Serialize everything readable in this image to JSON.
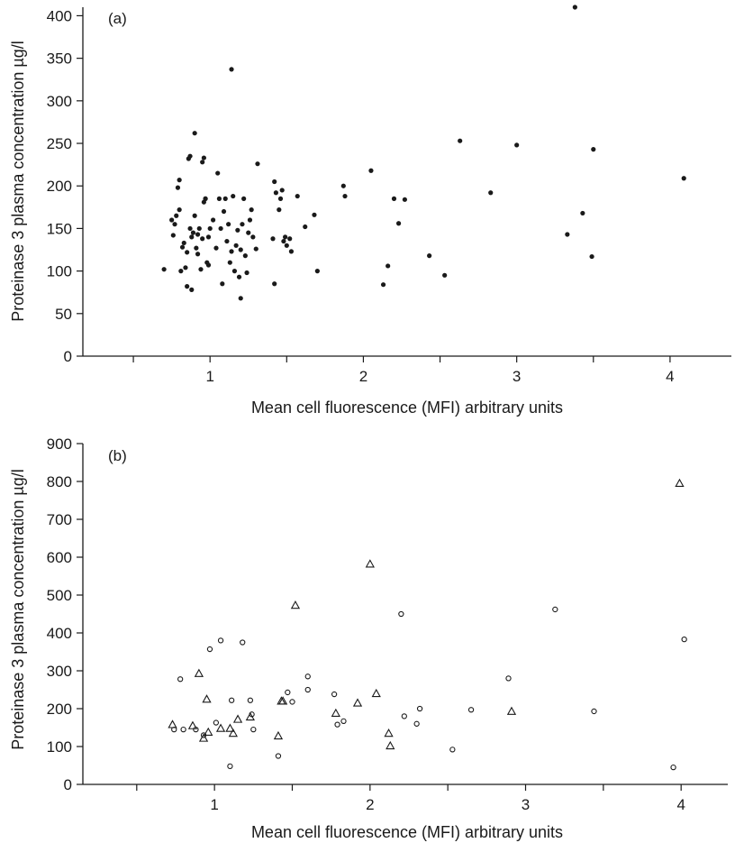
{
  "chart_data": [
    {
      "type": "scatter",
      "panel_label": "(a)",
      "xlabel": "Mean cell fluorescence (MFI) arbitrary units",
      "ylabel": "Proteinase 3 plasma concentration µg/l",
      "xlim": [
        0.2,
        4.4
      ],
      "ylim": [
        0,
        410
      ],
      "x_ticks": [
        1,
        2,
        3,
        4
      ],
      "x_minor_ticks": [
        0.5,
        1.5,
        2.5,
        3.5
      ],
      "y_ticks": [
        0,
        50,
        100,
        150,
        200,
        250,
        300,
        350,
        400
      ],
      "grid": false,
      "series": [
        {
          "marker": "filled-circle",
          "color": "#1a1a1a",
          "points": [
            [
              0.7,
              102
            ],
            [
              0.75,
              160
            ],
            [
              0.76,
              142
            ],
            [
              0.77,
              155
            ],
            [
              0.78,
              165
            ],
            [
              0.79,
              198
            ],
            [
              0.8,
              172
            ],
            [
              0.8,
              207
            ],
            [
              0.81,
              100
            ],
            [
              0.82,
              128
            ],
            [
              0.83,
              133
            ],
            [
              0.84,
              104
            ],
            [
              0.85,
              82
            ],
            [
              0.85,
              122
            ],
            [
              0.86,
              232
            ],
            [
              0.87,
              150
            ],
            [
              0.87,
              235
            ],
            [
              0.88,
              78
            ],
            [
              0.88,
              140
            ],
            [
              0.89,
              145
            ],
            [
              0.9,
              262
            ],
            [
              0.9,
              165
            ],
            [
              0.91,
              127
            ],
            [
              0.92,
              120
            ],
            [
              0.92,
              143
            ],
            [
              0.93,
              150
            ],
            [
              0.94,
              102
            ],
            [
              0.95,
              228
            ],
            [
              0.95,
              138
            ],
            [
              0.96,
              233
            ],
            [
              0.96,
              181
            ],
            [
              0.97,
              185
            ],
            [
              0.97,
              185
            ],
            [
              0.98,
              110
            ],
            [
              0.99,
              107
            ],
            [
              0.99,
              140
            ],
            [
              1.0,
              150
            ],
            [
              1.02,
              160
            ],
            [
              1.04,
              127
            ],
            [
              1.05,
              215
            ],
            [
              1.06,
              185
            ],
            [
              1.07,
              150
            ],
            [
              1.08,
              85
            ],
            [
              1.09,
              170
            ],
            [
              1.1,
              185
            ],
            [
              1.11,
              135
            ],
            [
              1.12,
              155
            ],
            [
              1.13,
              110
            ],
            [
              1.14,
              337
            ],
            [
              1.14,
              123
            ],
            [
              1.15,
              188
            ],
            [
              1.16,
              100
            ],
            [
              1.17,
              130
            ],
            [
              1.18,
              148
            ],
            [
              1.19,
              93
            ],
            [
              1.2,
              68
            ],
            [
              1.2,
              125
            ],
            [
              1.21,
              155
            ],
            [
              1.22,
              185
            ],
            [
              1.23,
              118
            ],
            [
              1.24,
              98
            ],
            [
              1.25,
              145
            ],
            [
              1.26,
              160
            ],
            [
              1.27,
              172
            ],
            [
              1.28,
              140
            ],
            [
              1.3,
              126
            ],
            [
              1.31,
              226
            ],
            [
              1.41,
              138
            ],
            [
              1.42,
              85
            ],
            [
              1.42,
              205
            ],
            [
              1.43,
              192
            ],
            [
              1.45,
              172
            ],
            [
              1.46,
              185
            ],
            [
              1.47,
              195
            ],
            [
              1.48,
              135
            ],
            [
              1.49,
              140
            ],
            [
              1.5,
              130
            ],
            [
              1.52,
              138
            ],
            [
              1.53,
              123
            ],
            [
              1.57,
              188
            ],
            [
              1.62,
              152
            ],
            [
              1.68,
              166
            ],
            [
              1.7,
              100
            ],
            [
              1.87,
              200
            ],
            [
              1.88,
              188
            ],
            [
              2.05,
              218
            ],
            [
              2.13,
              84
            ],
            [
              2.16,
              106
            ],
            [
              2.2,
              185
            ],
            [
              2.23,
              156
            ],
            [
              2.27,
              184
            ],
            [
              2.43,
              118
            ],
            [
              2.53,
              95
            ],
            [
              2.63,
              253
            ],
            [
              2.83,
              192
            ],
            [
              3.0,
              248
            ],
            [
              3.33,
              143
            ],
            [
              3.38,
              410
            ],
            [
              3.43,
              168
            ],
            [
              3.49,
              117
            ],
            [
              3.5,
              243
            ],
            [
              4.09,
              209
            ]
          ]
        }
      ]
    },
    {
      "type": "scatter",
      "panel_label": "(b)",
      "xlabel": "Mean cell fluorescence (MFI) arbitrary units",
      "ylabel": "Proteinase 3 plasma concentration µg/l",
      "xlim": [
        0.2,
        4.3
      ],
      "ylim": [
        0,
        900
      ],
      "x_ticks": [
        1,
        2,
        3,
        4
      ],
      "x_minor_ticks": [
        0.5,
        1.5,
        2.5,
        3.5
      ],
      "y_ticks": [
        0,
        100,
        200,
        300,
        400,
        500,
        600,
        700,
        800,
        900
      ],
      "grid": false,
      "series": [
        {
          "marker": "open-circle",
          "color": "#1a1a1a",
          "points": [
            [
              0.74,
              145
            ],
            [
              0.78,
              278
            ],
            [
              0.8,
              145
            ],
            [
              0.88,
              145
            ],
            [
              0.93,
              130
            ],
            [
              0.97,
              357
            ],
            [
              1.01,
              163
            ],
            [
              1.04,
              380
            ],
            [
              1.1,
              48
            ],
            [
              1.11,
              222
            ],
            [
              1.18,
              375
            ],
            [
              1.23,
              222
            ],
            [
              1.24,
              185
            ],
            [
              1.25,
              145
            ],
            [
              1.41,
              75
            ],
            [
              1.47,
              243
            ],
            [
              1.5,
              218
            ],
            [
              1.6,
              285
            ],
            [
              1.6,
              250
            ],
            [
              1.77,
              238
            ],
            [
              1.79,
              158
            ],
            [
              1.83,
              167
            ],
            [
              2.2,
              450
            ],
            [
              2.22,
              180
            ],
            [
              2.3,
              160
            ],
            [
              2.32,
              200
            ],
            [
              2.53,
              92
            ],
            [
              2.65,
              197
            ],
            [
              2.89,
              280
            ],
            [
              3.19,
              462
            ],
            [
              3.44,
              193
            ],
            [
              3.95,
              45
            ],
            [
              4.02,
              383
            ]
          ]
        },
        {
          "marker": "open-triangle",
          "color": "#1a1a1a",
          "points": [
            [
              0.73,
              158
            ],
            [
              0.86,
              155
            ],
            [
              0.9,
              293
            ],
            [
              0.93,
              122
            ],
            [
              0.95,
              225
            ],
            [
              0.96,
              138
            ],
            [
              1.04,
              148
            ],
            [
              1.1,
              148
            ],
            [
              1.12,
              135
            ],
            [
              1.15,
              172
            ],
            [
              1.23,
              178
            ],
            [
              1.41,
              128
            ],
            [
              1.43,
              220
            ],
            [
              1.44,
              220
            ],
            [
              1.52,
              473
            ],
            [
              1.78,
              188
            ],
            [
              1.92,
              215
            ],
            [
              2.0,
              582
            ],
            [
              2.04,
              240
            ],
            [
              2.12,
              135
            ],
            [
              2.13,
              102
            ],
            [
              2.91,
              193
            ],
            [
              3.99,
              795
            ]
          ]
        }
      ]
    }
  ]
}
